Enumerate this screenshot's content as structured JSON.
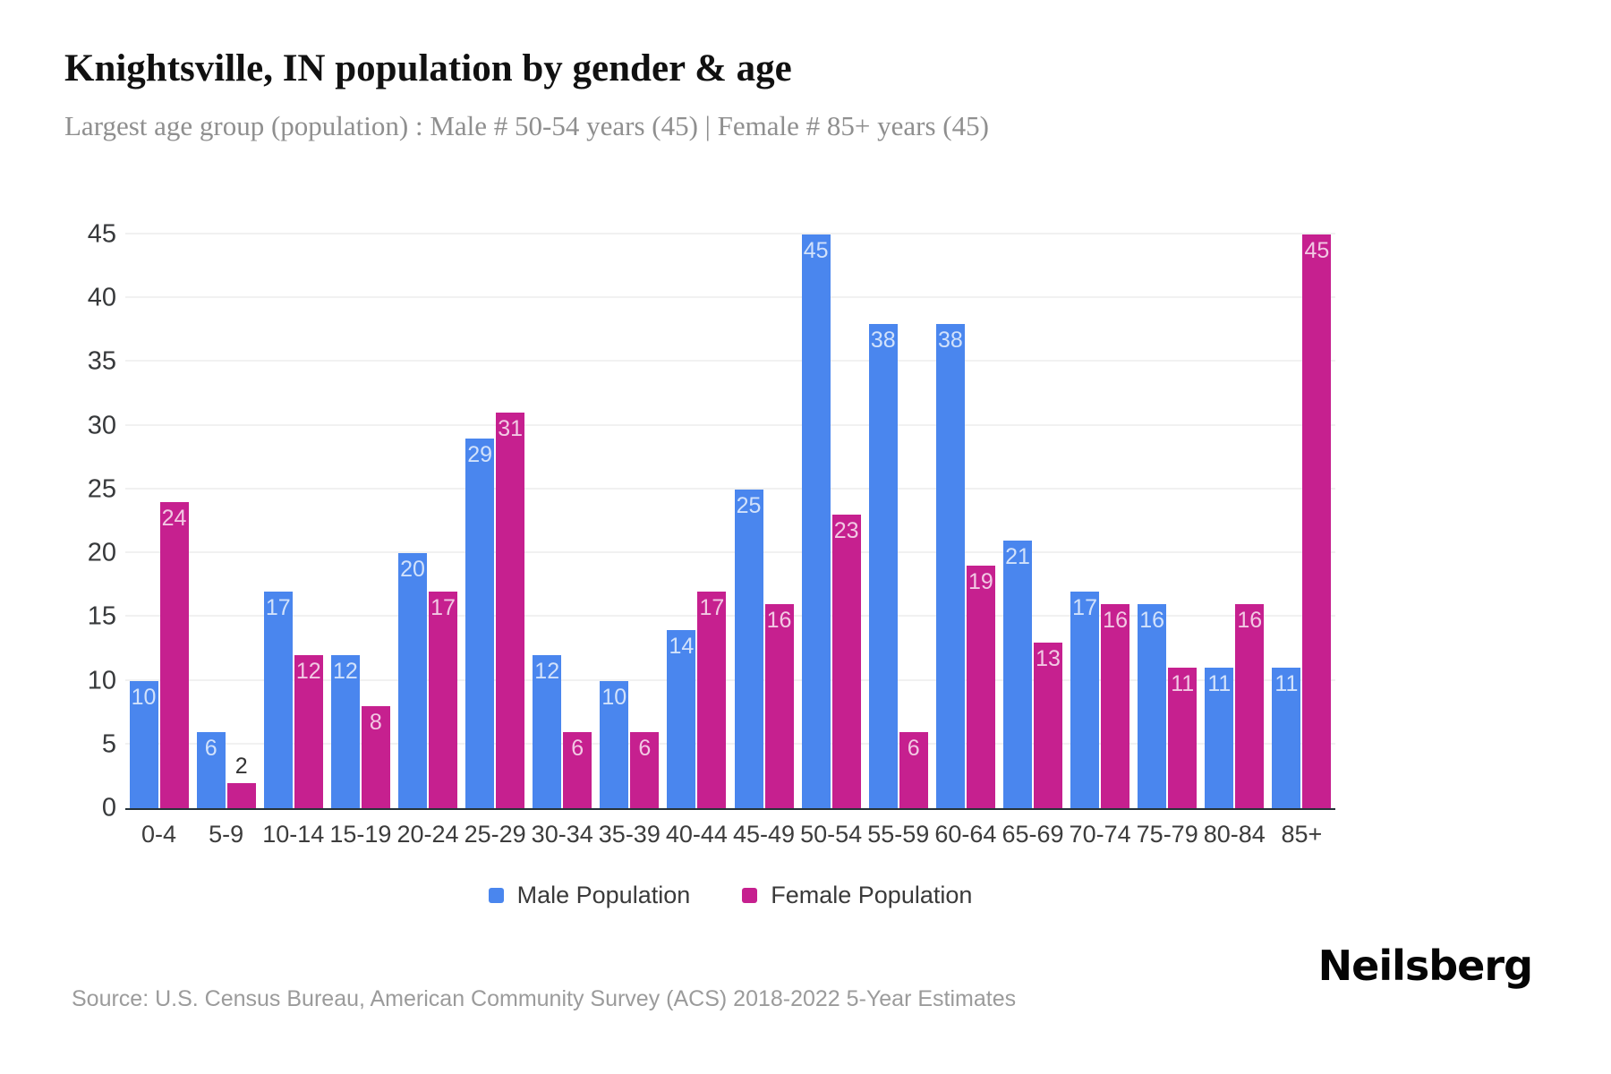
{
  "header": {
    "title": "Knightsville, IN population by gender & age",
    "subtitle": "Largest age group (population) : Male # 50-54 years (45) | Female # 85+ years (45)"
  },
  "chart_data": {
    "type": "bar",
    "title": "Knightsville, IN population by gender & age",
    "categories": [
      "0-4",
      "5-9",
      "10-14",
      "15-19",
      "20-24",
      "25-29",
      "30-34",
      "35-39",
      "40-44",
      "45-49",
      "50-54",
      "55-59",
      "60-64",
      "65-69",
      "70-74",
      "75-79",
      "80-84",
      "85+"
    ],
    "series": [
      {
        "name": "Male Population",
        "color": "#4a86ee",
        "label_color": "#d2e2fb",
        "values": [
          10,
          6,
          17,
          12,
          20,
          29,
          12,
          10,
          14,
          25,
          45,
          38,
          38,
          21,
          17,
          16,
          11,
          11
        ]
      },
      {
        "name": "Female Population",
        "color": "#c6208f",
        "label_color": "#f2c9e4",
        "values": [
          24,
          2,
          12,
          8,
          17,
          31,
          6,
          6,
          17,
          16,
          23,
          6,
          19,
          13,
          16,
          11,
          16,
          45
        ]
      }
    ],
    "xlabel": "",
    "ylabel": "",
    "ylim": [
      0,
      45
    ],
    "yticks": [
      0,
      5,
      10,
      15,
      20,
      25,
      30,
      35,
      40,
      45
    ],
    "grid": "horizontal",
    "legend_position": "bottom",
    "outside_label_color": "#333333"
  },
  "footer": {
    "source": "Source: U.S. Census Bureau, American Community Survey (ACS) 2018-2022 5-Year Estimates",
    "logo": "Neilsberg"
  }
}
